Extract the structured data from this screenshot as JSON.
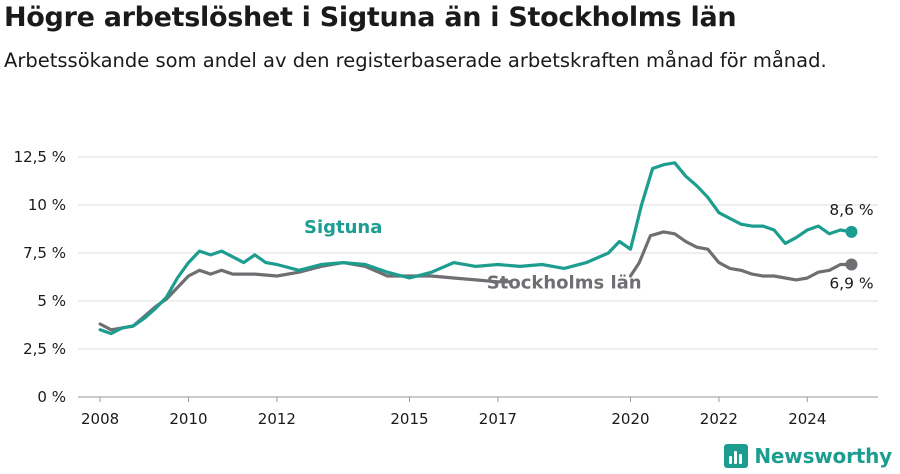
{
  "title": "Högre arbetslöshet i Sigtuna än i Stockholms län",
  "subtitle": "Arbetssökande som andel av den registerbaserade arbetskraften månad för månad.",
  "brand": {
    "name": "Newsworthy",
    "color": "#1d9d8f",
    "icon": "newsworthy-logo-icon"
  },
  "chart_data": {
    "type": "line",
    "ylim": [
      0,
      12.5
    ],
    "yticks": [
      0,
      2.5,
      5,
      7.5,
      10,
      12.5
    ],
    "ytick_labels": [
      "0 %",
      "2,5 %",
      "5 %",
      "7,5 %",
      "10 %",
      "12,5 %"
    ],
    "xlim": [
      2007.5,
      2025.6
    ],
    "xticks": [
      2008,
      2010,
      2012,
      2015,
      2017,
      2020,
      2022,
      2024
    ],
    "xtick_labels": [
      "2008",
      "2010",
      "2012",
      "2015",
      "2017",
      "2020",
      "2022",
      "2024"
    ],
    "grid": true,
    "series": [
      {
        "name": "Stockholms län",
        "color": "#6f6f73",
        "end_label": "6,9 %",
        "end_value": 6.9,
        "points": [
          [
            2008.0,
            3.8
          ],
          [
            2008.25,
            3.5
          ],
          [
            2008.5,
            3.6
          ],
          [
            2008.75,
            3.7
          ],
          [
            2009.0,
            4.2
          ],
          [
            2009.25,
            4.7
          ],
          [
            2009.5,
            5.1
          ],
          [
            2009.75,
            5.7
          ],
          [
            2010.0,
            6.3
          ],
          [
            2010.25,
            6.6
          ],
          [
            2010.5,
            6.4
          ],
          [
            2010.75,
            6.6
          ],
          [
            2011.0,
            6.4
          ],
          [
            2011.5,
            6.4
          ],
          [
            2012.0,
            6.3
          ],
          [
            2012.5,
            6.5
          ],
          [
            2013.0,
            6.8
          ],
          [
            2013.5,
            7.0
          ],
          [
            2014.0,
            6.8
          ],
          [
            2014.5,
            6.3
          ],
          [
            2015.0,
            6.3
          ],
          [
            2015.5,
            6.3
          ],
          [
            2016.0,
            6.2
          ],
          [
            2016.5,
            6.1
          ],
          [
            2017.0,
            6.0
          ],
          [
            2017.3,
            6.0
          ],
          null,
          [
            2020.0,
            6.3
          ],
          [
            2020.2,
            7.0
          ],
          [
            2020.45,
            8.4
          ],
          [
            2020.75,
            8.6
          ],
          [
            2021.0,
            8.5
          ],
          [
            2021.25,
            8.1
          ],
          [
            2021.5,
            7.8
          ],
          [
            2021.75,
            7.7
          ],
          [
            2022.0,
            7.0
          ],
          [
            2022.25,
            6.7
          ],
          [
            2022.5,
            6.6
          ],
          [
            2022.75,
            6.4
          ],
          [
            2023.0,
            6.3
          ],
          [
            2023.25,
            6.3
          ],
          [
            2023.5,
            6.2
          ],
          [
            2023.75,
            6.1
          ],
          [
            2024.0,
            6.2
          ],
          [
            2024.25,
            6.5
          ],
          [
            2024.5,
            6.6
          ],
          [
            2024.75,
            6.9
          ],
          [
            2025.0,
            6.9
          ]
        ]
      },
      {
        "name": "Sigtuna",
        "color": "#1d9d8f",
        "end_label": "8,6 %",
        "end_value": 8.6,
        "points": [
          [
            2008.0,
            3.5
          ],
          [
            2008.25,
            3.3
          ],
          [
            2008.5,
            3.6
          ],
          [
            2008.75,
            3.7
          ],
          [
            2009.0,
            4.1
          ],
          [
            2009.25,
            4.6
          ],
          [
            2009.5,
            5.2
          ],
          [
            2009.75,
            6.2
          ],
          [
            2010.0,
            7.0
          ],
          [
            2010.25,
            7.6
          ],
          [
            2010.5,
            7.4
          ],
          [
            2010.75,
            7.6
          ],
          [
            2011.0,
            7.3
          ],
          [
            2011.25,
            7.0
          ],
          [
            2011.5,
            7.4
          ],
          [
            2011.75,
            7.0
          ],
          [
            2012.0,
            6.9
          ],
          [
            2012.5,
            6.6
          ],
          [
            2013.0,
            6.9
          ],
          [
            2013.5,
            7.0
          ],
          [
            2014.0,
            6.9
          ],
          [
            2014.5,
            6.5
          ],
          [
            2015.0,
            6.2
          ],
          [
            2015.5,
            6.5
          ],
          [
            2016.0,
            7.0
          ],
          [
            2016.5,
            6.8
          ],
          [
            2017.0,
            6.9
          ],
          [
            2017.5,
            6.8
          ],
          [
            2018.0,
            6.9
          ],
          [
            2018.5,
            6.7
          ],
          [
            2019.0,
            7.0
          ],
          [
            2019.5,
            7.5
          ],
          [
            2019.75,
            8.1
          ],
          [
            2020.0,
            7.7
          ],
          [
            2020.25,
            10.0
          ],
          [
            2020.5,
            11.9
          ],
          [
            2020.75,
            12.1
          ],
          [
            2021.0,
            12.2
          ],
          [
            2021.25,
            11.5
          ],
          [
            2021.5,
            11.0
          ],
          [
            2021.75,
            10.4
          ],
          [
            2022.0,
            9.6
          ],
          [
            2022.25,
            9.3
          ],
          [
            2022.5,
            9.0
          ],
          [
            2022.75,
            8.9
          ],
          [
            2023.0,
            8.9
          ],
          [
            2023.25,
            8.7
          ],
          [
            2023.5,
            8.0
          ],
          [
            2023.75,
            8.3
          ],
          [
            2024.0,
            8.7
          ],
          [
            2024.25,
            8.9
          ],
          [
            2024.5,
            8.5
          ],
          [
            2024.75,
            8.7
          ],
          [
            2025.0,
            8.6
          ]
        ]
      }
    ]
  }
}
